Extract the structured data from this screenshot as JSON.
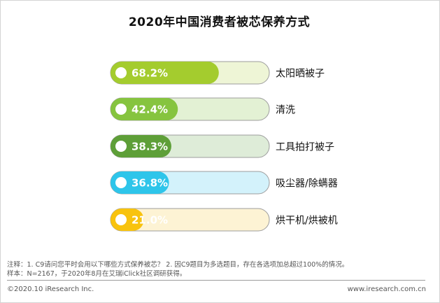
{
  "chart_data": {
    "type": "bar",
    "title": "2020年中国消费者被芯保养方式",
    "categories": [
      "太阳晒被子",
      "清洗",
      "工具拍打被子",
      "吸尘器/除螨器",
      "烘干机/烘被机"
    ],
    "values": [
      68.2,
      42.4,
      38.3,
      36.8,
      21.0
    ],
    "value_labels": [
      "68.2%",
      "42.4%",
      "38.3%",
      "36.8%",
      "21.0%"
    ],
    "xlim": [
      0,
      100
    ],
    "legend": "none",
    "grid": false,
    "colors": [
      {
        "fill": "#a4cc2e",
        "track": "#eef5d6"
      },
      {
        "fill": "#86c43f",
        "track": "#e3f1d4"
      },
      {
        "fill": "#5e9f38",
        "track": "#deecd8"
      },
      {
        "fill": "#2ec5ea",
        "track": "#d3f2fb"
      },
      {
        "fill": "#f8c30e",
        "track": "#fdf3d4"
      }
    ]
  },
  "notes": {
    "line1": "注释：1. C9请问您平时会用以下哪些方式保养被芯？ 2. 因C9题目为多选题目，存在各选项加总超过100%的情况。",
    "line2": "样本：N=2167，于2020年8月在艾瑞iClick社区调研获得。"
  },
  "footer": {
    "copyright": "©2020.10 iResearch Inc.",
    "website": "www.iresearch.com.cn"
  }
}
